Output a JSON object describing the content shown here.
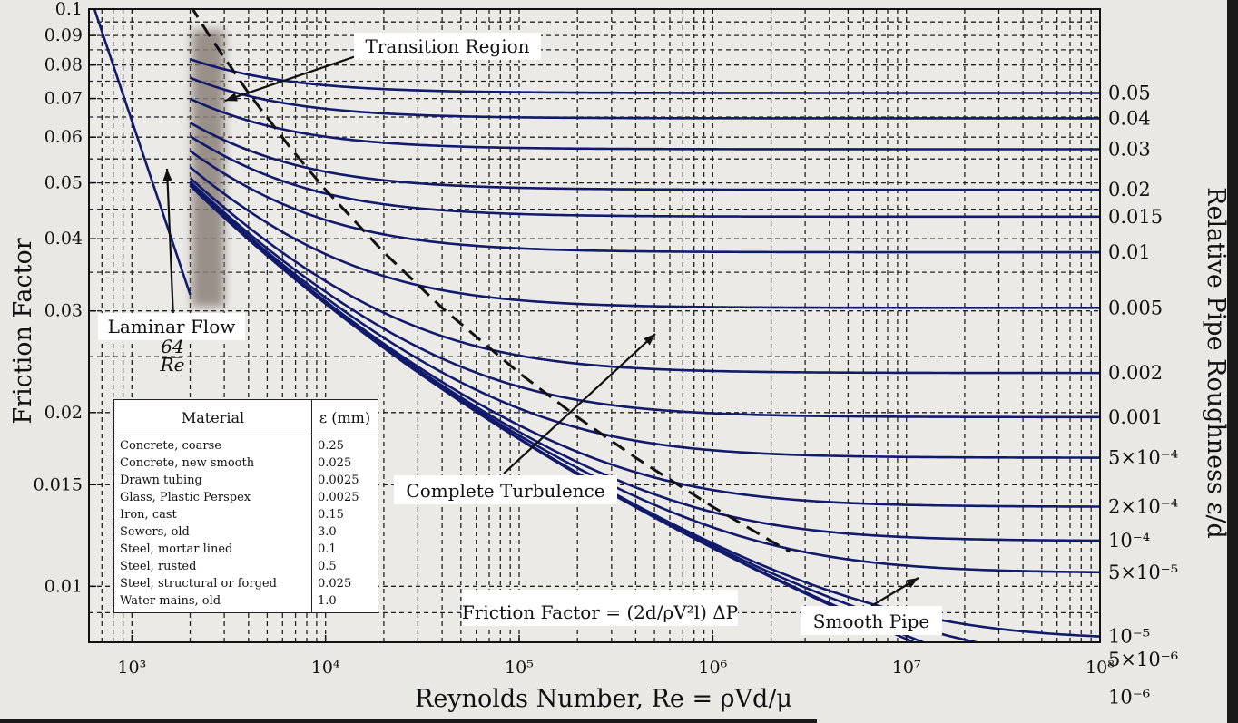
{
  "chart_data": {
    "type": "line",
    "x_scale": "log",
    "y_scale": "log",
    "xlim": [
      600,
      100000000
    ],
    "ylim": [
      0.008,
      0.1
    ],
    "grid": true,
    "ylabel": "Friction Factor",
    "xlabel": "Reynolds Number, Re = ρVd/μ",
    "right_axis_label": "Relative Pipe Roughness ε/d",
    "x_tick_labels": [
      {
        "value": 1000,
        "label": "10³"
      },
      {
        "value": 10000,
        "label": "10⁴"
      },
      {
        "value": 100000,
        "label": "10⁵"
      },
      {
        "value": 1000000,
        "label": "10⁶"
      },
      {
        "value": 10000000,
        "label": "10⁷"
      },
      {
        "value": 100000000,
        "label": "10⁸"
      }
    ],
    "y_tick_labels": [
      {
        "value": 0.1,
        "label": "0.1"
      },
      {
        "value": 0.09,
        "label": "0.09"
      },
      {
        "value": 0.08,
        "label": "0.08"
      },
      {
        "value": 0.07,
        "label": "0.07"
      },
      {
        "value": 0.06,
        "label": "0.06"
      },
      {
        "value": 0.05,
        "label": "0.05"
      },
      {
        "value": 0.04,
        "label": "0.04"
      },
      {
        "value": 0.03,
        "label": "0.03"
      },
      {
        "value": 0.02,
        "label": "0.02"
      },
      {
        "value": 0.015,
        "label": "0.015"
      },
      {
        "value": 0.01,
        "label": "0.01"
      }
    ],
    "roughness_labels": [
      "0.05",
      "0.04",
      "0.03",
      "0.02",
      "0.015",
      "0.01",
      "0.005",
      "0.002",
      "0.001",
      "5×10⁻⁴",
      "2×10⁻⁴",
      "10⁻⁴",
      "5×10⁻⁵",
      "10⁻⁵",
      "5×10⁻⁶",
      "10⁻⁶"
    ],
    "roughness_values": [
      0.05,
      0.04,
      0.03,
      0.02,
      0.015,
      0.01,
      0.005,
      0.002,
      0.001,
      0.0005,
      0.0002,
      0.0001,
      5e-05,
      1e-05,
      5e-06,
      1e-06
    ],
    "laminar_line": {
      "re": [
        600,
        2000
      ],
      "f": [
        0.1067,
        0.032
      ]
    },
    "transition_re_range": [
      2000,
      3000
    ],
    "turbulent_re_start": 2000,
    "complete_turbulence_re_factor": 200,
    "curve_color": "#111a6b",
    "transition_color": "#8c817a",
    "annotations": {
      "transition": "Transition Region",
      "laminar": "Laminar Flow",
      "laminar_formula": "64/Re",
      "complete_turbulence": "Complete Turbulence",
      "friction_formula": "Friction Factor = (2d/ρV²l) ΔP",
      "smooth_pipe": "Smooth Pipe"
    }
  },
  "legend": {
    "header_material": "Material",
    "header_epsilon": "ε (mm)",
    "rows": [
      {
        "material": "Concrete, coarse",
        "epsilon": "0.25"
      },
      {
        "material": "Concrete, new smooth",
        "epsilon": "0.025"
      },
      {
        "material": "Drawn tubing",
        "epsilon": "0.0025"
      },
      {
        "material": "Glass, Plastic Perspex",
        "epsilon": "0.0025"
      },
      {
        "material": "Iron, cast",
        "epsilon": "0.15"
      },
      {
        "material": "Sewers, old",
        "epsilon": "3.0"
      },
      {
        "material": "Steel, mortar lined",
        "epsilon": "0.1"
      },
      {
        "material": "Steel, rusted",
        "epsilon": "0.5"
      },
      {
        "material": "Steel, structural or forged",
        "epsilon": "0.025"
      },
      {
        "material": "Water mains, old",
        "epsilon": "1.0"
      }
    ]
  }
}
